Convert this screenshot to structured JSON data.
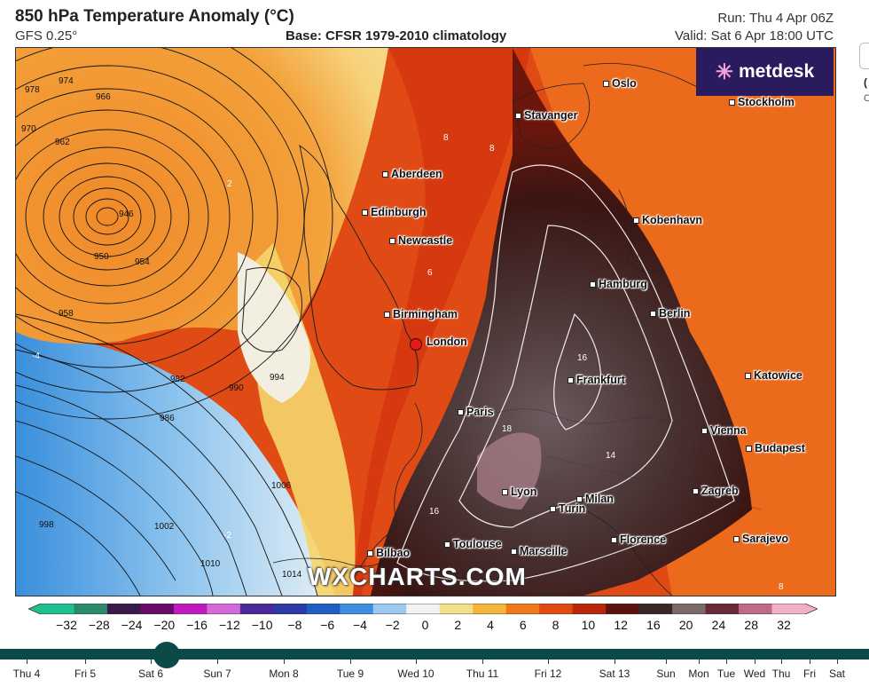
{
  "header": {
    "title": "850 hPa Temperature Anomaly (°C)",
    "model": "GFS 0.25°",
    "base": "Base: CFSR 1979-2010 climatology",
    "run": "Run: Thu 4 Apr 06Z",
    "valid": "Valid: Sat 6 Apr 18:00 UTC"
  },
  "branding": {
    "logo_text": "metdesk",
    "watermark": "WXCHARTS.COM"
  },
  "cities": [
    {
      "name": "Oslo"
    },
    {
      "name": "Stavanger"
    },
    {
      "name": "Stockholm"
    },
    {
      "name": "Aberdeen"
    },
    {
      "name": "Edinburgh"
    },
    {
      "name": "Newcastle"
    },
    {
      "name": "Kobenhavn"
    },
    {
      "name": "Hamburg"
    },
    {
      "name": "Berlin"
    },
    {
      "name": "Birmingham"
    },
    {
      "name": "London"
    },
    {
      "name": "Frankfurt"
    },
    {
      "name": "Katowice"
    },
    {
      "name": "Paris"
    },
    {
      "name": "Vienna"
    },
    {
      "name": "Budapest"
    },
    {
      "name": "Zagreb"
    },
    {
      "name": "Lyon"
    },
    {
      "name": "Milan"
    },
    {
      "name": "Turin"
    },
    {
      "name": "Florence"
    },
    {
      "name": "Sarajevo"
    },
    {
      "name": "Toulouse"
    },
    {
      "name": "Marseille"
    },
    {
      "name": "Bilbao"
    }
  ],
  "isobar_labels": [
    "946",
    "950",
    "954",
    "958",
    "962",
    "966",
    "970",
    "974",
    "978",
    "982",
    "986",
    "990",
    "994",
    "998",
    "1002",
    "1006",
    "1010",
    "1014"
  ],
  "anomaly_labels": [
    "8",
    "8",
    "6",
    "16",
    "18",
    "16",
    "14",
    "2",
    "-2",
    "-4",
    "8"
  ],
  "colorbar": {
    "ticks": [
      "−32",
      "−28",
      "−24",
      "−20",
      "−16",
      "−12",
      "−10",
      "−8",
      "−6",
      "−4",
      "−2",
      "0",
      "2",
      "4",
      "6",
      "8",
      "10",
      "12",
      "16",
      "20",
      "24",
      "28",
      "32"
    ],
    "colors": [
      "#1fbf8f",
      "#2a8a6a",
      "#3a1a4a",
      "#6a0a6a",
      "#c11bbf",
      "#d46ad8",
      "#4a2a9a",
      "#2a3aa6",
      "#1f5fc4",
      "#3f8fe0",
      "#9bcaf0",
      "#f2f2f2",
      "#f5e08a",
      "#f5b43a",
      "#ef7a1c",
      "#e24a14",
      "#b8260c",
      "#5a1410",
      "#3a2626",
      "#7a6a6a",
      "#6a2a3a",
      "#c06a8a",
      "#f0b0c8"
    ]
  },
  "timeline": {
    "days": [
      "Thu 4",
      "Fri 5",
      "Sat 6",
      "Sun 7",
      "Mon 8",
      "Tue 9",
      "Wed 10",
      "Thu 11",
      "Fri 12",
      "Sat 13",
      "Sun",
      "Mon",
      "Tue",
      "Wed",
      "Thu",
      "Fri",
      "Sat"
    ],
    "selected": "Sat 6"
  },
  "side": {
    "text1": "(",
    "text2": "C"
  }
}
